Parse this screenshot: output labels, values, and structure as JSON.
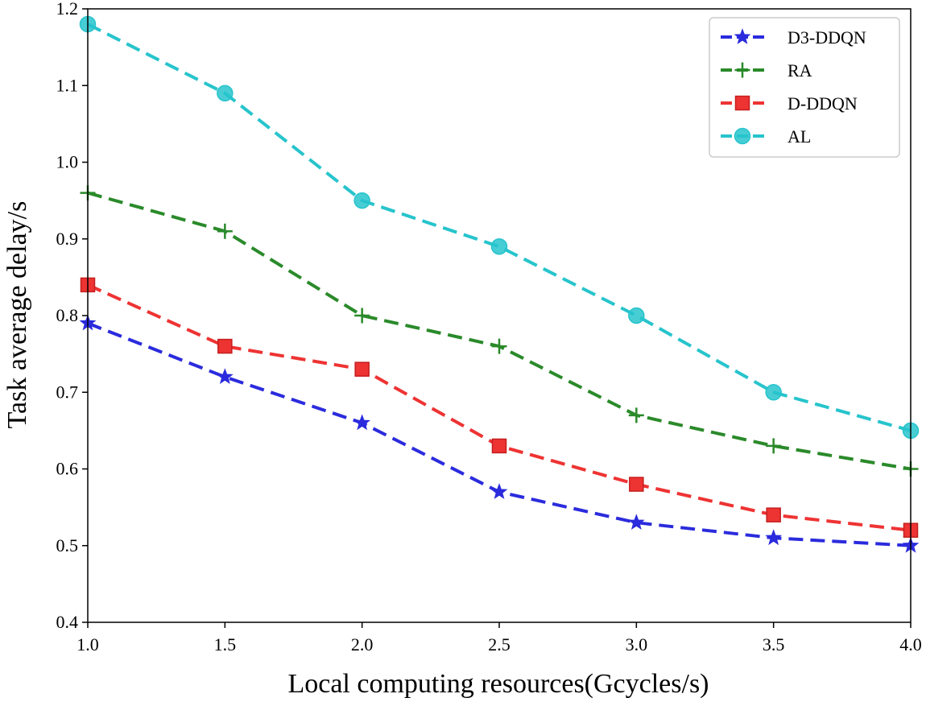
{
  "chart_data": {
    "type": "line",
    "title": "",
    "xlabel": "Local computing resources(Gcycles/s)",
    "ylabel": "Task average delay/s",
    "x": [
      1.0,
      1.5,
      2.0,
      2.5,
      3.0,
      3.5,
      4.0
    ],
    "xlim": [
      1.0,
      4.0
    ],
    "ylim": [
      0.4,
      1.2
    ],
    "xticks": [
      "1.0",
      "1.5",
      "2.0",
      "2.5",
      "3.0",
      "3.5",
      "4.0"
    ],
    "yticks": [
      "0.4",
      "0.5",
      "0.6",
      "0.7",
      "0.8",
      "0.9",
      "1.0",
      "1.1",
      "1.2"
    ],
    "grid": false,
    "legend_position": "top-right",
    "series": [
      {
        "name": "D3-DDQN",
        "color": "#2b2bdd",
        "marker": "star",
        "values": [
          0.79,
          0.72,
          0.66,
          0.57,
          0.53,
          0.51,
          0.5
        ]
      },
      {
        "name": "RA",
        "color": "#2a8a2a",
        "marker": "plus",
        "values": [
          0.96,
          0.91,
          0.8,
          0.76,
          0.67,
          0.63,
          0.6
        ]
      },
      {
        "name": "D-DDQN",
        "color": "#ee3333",
        "marker": "square",
        "values": [
          0.84,
          0.76,
          0.73,
          0.63,
          0.58,
          0.54,
          0.52
        ]
      },
      {
        "name": "AL",
        "color": "#27c4cc",
        "marker": "circle",
        "values": [
          1.18,
          1.09,
          0.95,
          0.89,
          0.8,
          0.7,
          0.65
        ]
      }
    ]
  }
}
